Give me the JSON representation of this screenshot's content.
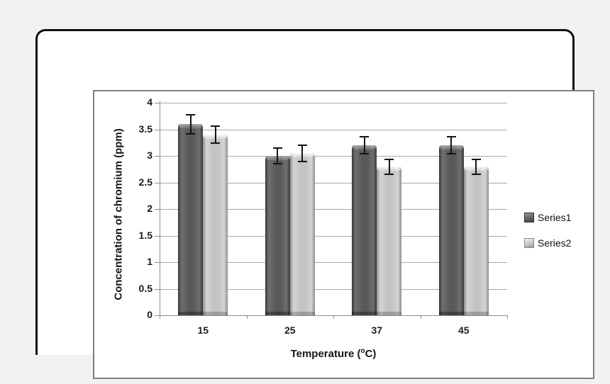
{
  "figure": {
    "page_background": "#f2f2f3",
    "frame_border_color": "#101010",
    "panel_border_color": "#7f7f7f",
    "gridline_color": "#a9a9a9",
    "axis_color": "#8c8c8c",
    "error_bar_color": "#141414"
  },
  "chart_data": {
    "type": "bar",
    "title": "",
    "xlabel": "Temperature (°C)",
    "xlabel_parts": {
      "prefix": "Temperature (",
      "sup": "o",
      "suffix": "C)"
    },
    "ylabel": "Concentration of chromium (ppm)",
    "categories": [
      "15",
      "25",
      "37",
      "45"
    ],
    "series": [
      {
        "name": "Series1",
        "color": "#595959",
        "values": [
          3.6,
          3.0,
          3.2,
          3.2
        ],
        "errors": [
          0.18,
          0.15,
          0.16,
          0.16
        ]
      },
      {
        "name": "Series2",
        "color": "#c3c3c3",
        "values": [
          3.4,
          3.05,
          2.8,
          2.8
        ],
        "errors": [
          0.16,
          0.15,
          0.14,
          0.14
        ]
      }
    ],
    "ylim": [
      0,
      4
    ],
    "ytick_step": 0.5,
    "ytick_labels": [
      "0",
      "0.5",
      "1",
      "1.5",
      "2",
      "2.5",
      "3",
      "3.5",
      "4"
    ],
    "grid": true,
    "error_bars": true,
    "legend_position": "right"
  }
}
